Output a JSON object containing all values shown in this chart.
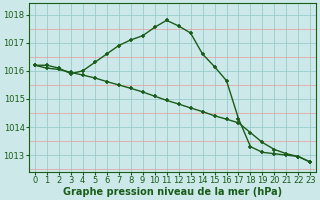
{
  "line1_x": [
    0,
    1,
    2,
    3,
    4,
    5,
    6,
    7,
    8,
    9,
    10,
    11,
    12,
    13,
    14,
    15,
    16,
    17,
    18,
    19,
    20,
    21,
    22,
    23
  ],
  "line1_y": [
    1016.2,
    1016.2,
    1016.1,
    1015.9,
    1016.0,
    1016.3,
    1016.6,
    1016.9,
    1017.1,
    1017.25,
    1017.55,
    1017.8,
    1017.6,
    1017.35,
    1016.6,
    1016.15,
    1015.65,
    1014.3,
    1013.3,
    1013.1,
    1013.05,
    1013.0,
    1012.95,
    1012.75
  ],
  "line2_x": [
    0,
    1,
    2,
    3,
    4,
    5,
    6,
    7,
    8,
    9,
    10,
    11,
    12,
    13,
    14,
    15,
    16,
    17,
    18,
    19,
    20,
    21,
    22,
    23
  ],
  "line2_y": [
    1016.2,
    1016.1,
    1016.05,
    1015.95,
    1015.85,
    1015.75,
    1015.62,
    1015.5,
    1015.38,
    1015.25,
    1015.1,
    1014.95,
    1014.82,
    1014.68,
    1014.55,
    1014.4,
    1014.28,
    1014.15,
    1013.8,
    1013.45,
    1013.2,
    1013.05,
    1012.95,
    1012.75
  ],
  "line_color": "#1a5c1a",
  "marker": "+",
  "markersize": 3.5,
  "linewidth": 1.0,
  "bg_color": "#cce8e8",
  "grid_major_color": "#99cccc",
  "grid_minor_color": "#e89999",
  "xlabel": "Graphe pression niveau de la mer (hPa)",
  "xlabel_fontsize": 7.0,
  "xticks": [
    0,
    1,
    2,
    3,
    4,
    5,
    6,
    7,
    8,
    9,
    10,
    11,
    12,
    13,
    14,
    15,
    16,
    17,
    18,
    19,
    20,
    21,
    22,
    23
  ],
  "yticks": [
    1013,
    1014,
    1015,
    1016,
    1017,
    1018
  ],
  "ylim": [
    1012.4,
    1018.4
  ],
  "xlim": [
    -0.5,
    23.5
  ],
  "tick_fontsize": 6.0,
  "markeredgewidth": 1.2
}
